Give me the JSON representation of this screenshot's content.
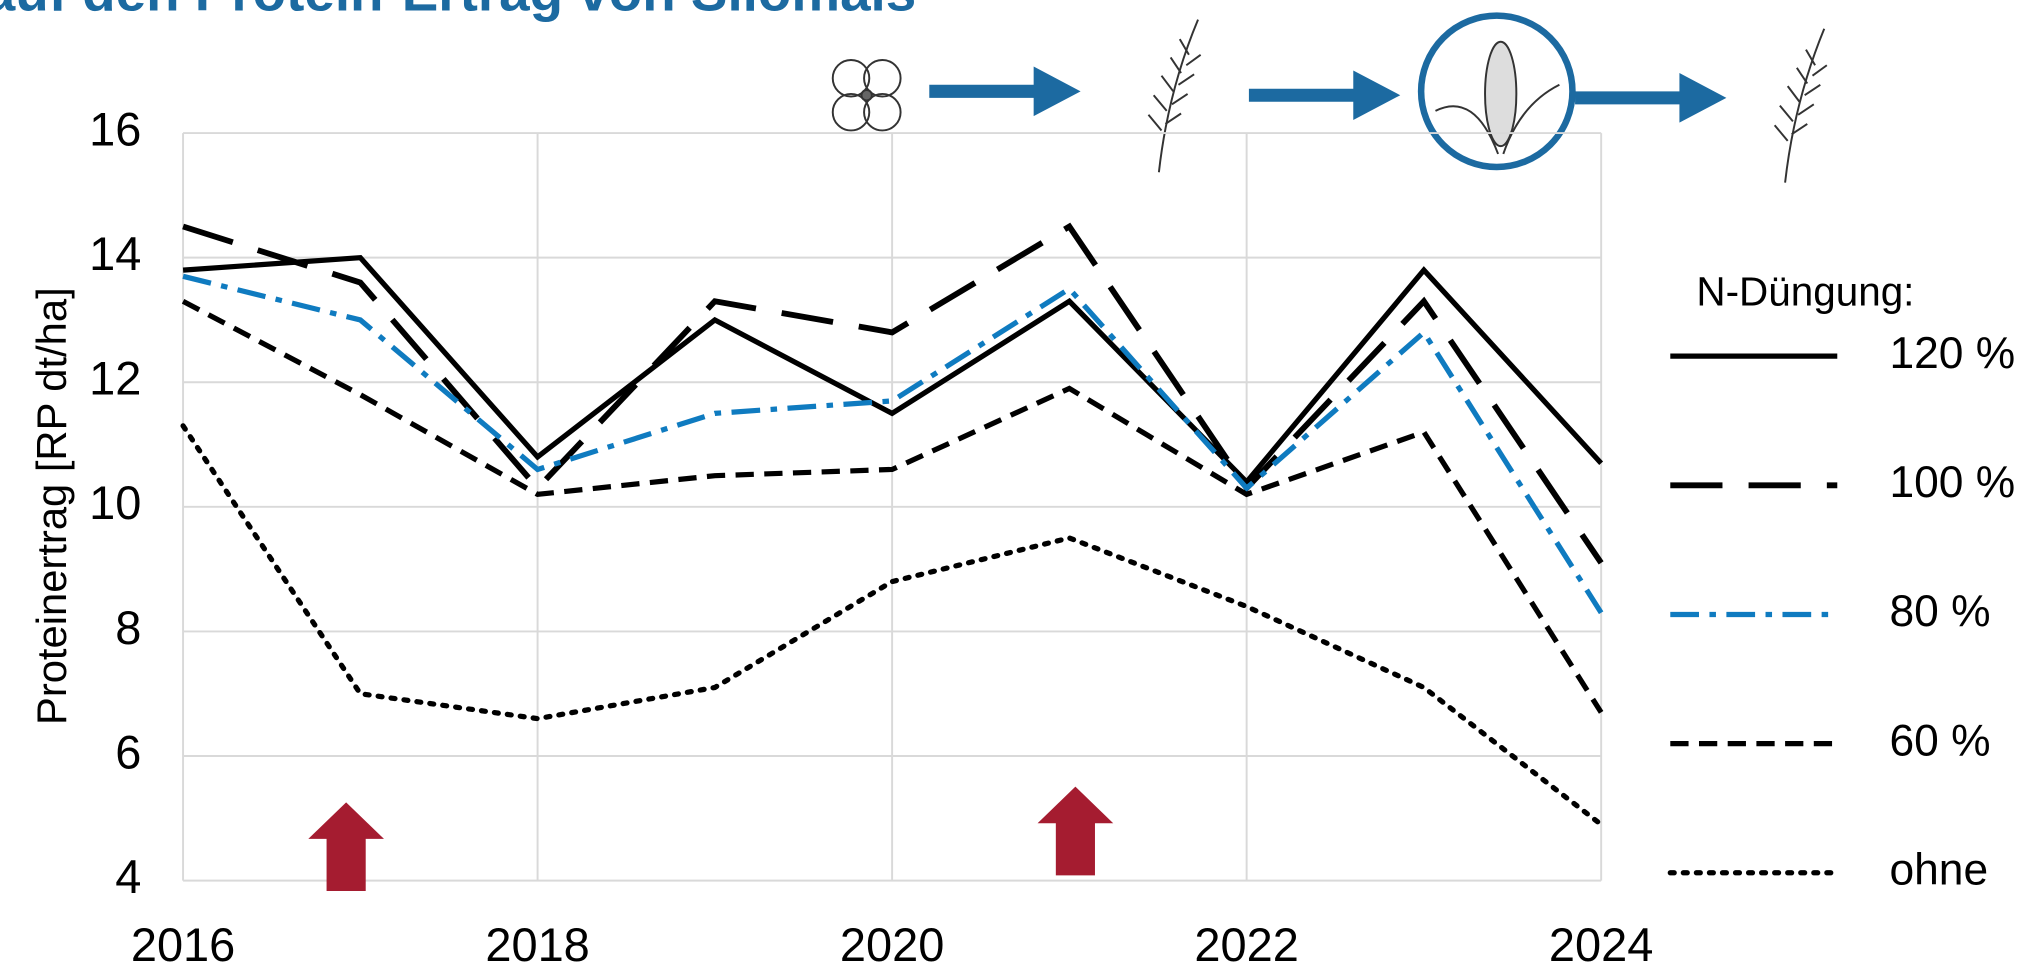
{
  "chart_data": {
    "type": "line",
    "title": "auf den Protein-Ertrag von Silomais",
    "ylabel": "Proteinertrag [RP dt/ha]",
    "legend_title": "N-Düngung:",
    "x": [
      2016,
      2017,
      2018,
      2019,
      2020,
      2021,
      2022,
      2023,
      2024
    ],
    "xlim": [
      2016,
      2024
    ],
    "xticks": [
      2016,
      2018,
      2020,
      2022,
      2024
    ],
    "ylim": [
      4,
      16
    ],
    "yticks": [
      4,
      6,
      8,
      10,
      12,
      14,
      16
    ],
    "grid": true,
    "legend": "right",
    "series": [
      {
        "name": "120 %",
        "color": "#000000",
        "values": [
          13.8,
          14.0,
          10.8,
          13.0,
          11.5,
          13.3,
          10.4,
          13.8,
          10.7
        ]
      },
      {
        "name": "100 %",
        "color": "#000000",
        "values": [
          14.5,
          13.6,
          10.3,
          13.3,
          12.8,
          14.5,
          10.3,
          13.3,
          9.1
        ]
      },
      {
        "name": "80 %",
        "color": "#0f7bc0",
        "values": [
          13.7,
          13.0,
          10.6,
          11.5,
          11.7,
          13.5,
          10.3,
          12.8,
          8.3
        ]
      },
      {
        "name": "60 %",
        "color": "#000000",
        "values": [
          13.3,
          11.8,
          10.2,
          10.5,
          10.6,
          11.9,
          10.2,
          11.2,
          6.7
        ]
      },
      {
        "name": "ohne",
        "color": "#000000",
        "values": [
          11.3,
          7.0,
          6.6,
          7.1,
          8.8,
          9.5,
          8.4,
          7.1,
          4.9
        ]
      }
    ]
  }
}
